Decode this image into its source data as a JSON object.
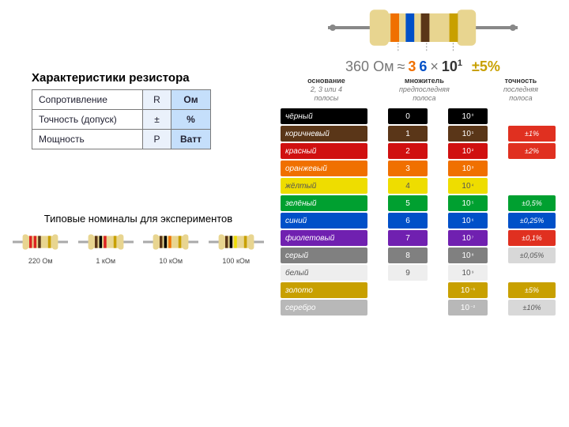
{
  "left": {
    "title": "Характеристики резистора",
    "rows": [
      {
        "label": "Сопротивление",
        "sym": "R",
        "unit": "Ом"
      },
      {
        "label": "Точность (допуск)",
        "sym": "±",
        "unit": "%"
      },
      {
        "label": "Мощность",
        "sym": "P",
        "unit": "Ватт"
      }
    ],
    "typicalTitle": "Типовые номиналы для экспериментов",
    "resistors": [
      {
        "label": "220 Ом",
        "bands": [
          "#d22",
          "#d22",
          "#5a3618",
          "#c8a000"
        ]
      },
      {
        "label": "1 кОм",
        "bands": [
          "#5a3618",
          "#000",
          "#d22",
          "#c8a000"
        ]
      },
      {
        "label": "10 кОм",
        "bands": [
          "#5a3618",
          "#000",
          "#f07000",
          "#c8a000"
        ]
      },
      {
        "label": "100 кОм",
        "bands": [
          "#5a3618",
          "#000",
          "#eedd00",
          "#c8a000"
        ]
      }
    ]
  },
  "right": {
    "resistorBands": [
      "#f07000",
      "#0050c8",
      "#5a3618",
      "#c8a000"
    ],
    "formula": {
      "value": "360 Ом",
      "approx": "≈",
      "d1": "3",
      "d2": "6",
      "mul": "×",
      "base": "10",
      "exp": "1",
      "tol": "±5%"
    },
    "legend": [
      {
        "t1": "основание",
        "t2": "2, 3 или 4\nполосы"
      },
      {
        "t1": "множитель",
        "t2": "предпоследняя\nполоса"
      },
      {
        "t1": "точность",
        "t2": "последняя\nполоса"
      }
    ],
    "colorRows": [
      {
        "name": "чёрный",
        "bg": "#000000",
        "fg": "#ffffff",
        "digit": "0",
        "mult": "10⁰"
      },
      {
        "name": "коричневый",
        "bg": "#5a3618",
        "fg": "#ffffff",
        "digit": "1",
        "mult": "10¹",
        "tol": "±1%",
        "tolbg": "#e03020",
        "tolfg": "#ffffff"
      },
      {
        "name": "красный",
        "bg": "#d01010",
        "fg": "#ffffff",
        "digit": "2",
        "mult": "10²",
        "tol": "±2%",
        "tolbg": "#e03020",
        "tolfg": "#ffffff"
      },
      {
        "name": "оранжевый",
        "bg": "#f07000",
        "fg": "#ffffff",
        "digit": "3",
        "mult": "10³"
      },
      {
        "name": "жёлтый",
        "bg": "#eedd00",
        "fg": "#555555",
        "digit": "4",
        "mult": "10⁴"
      },
      {
        "name": "зелёный",
        "bg": "#00a030",
        "fg": "#ffffff",
        "digit": "5",
        "mult": "10⁵",
        "tol": "±0,5%",
        "tolbg": "#00a030",
        "tolfg": "#ffffff"
      },
      {
        "name": "синий",
        "bg": "#0050c8",
        "fg": "#ffffff",
        "digit": "6",
        "mult": "10⁶",
        "tol": "±0,25%",
        "tolbg": "#0050c8",
        "tolfg": "#ffffff"
      },
      {
        "name": "фиолетовый",
        "bg": "#7020b0",
        "fg": "#ffffff",
        "digit": "7",
        "mult": "10⁷",
        "tol": "±0,1%",
        "tolbg": "#e03020",
        "tolfg": "#ffffff"
      },
      {
        "name": "серый",
        "bg": "#808080",
        "fg": "#ffffff",
        "digit": "8",
        "mult": "10⁸",
        "tol": "±0,05%",
        "tolbg": "#d8d8d8",
        "tolfg": "#555555"
      },
      {
        "name": "белый",
        "bg": "#eeeeee",
        "fg": "#555555",
        "digit": "9",
        "mult": "10⁹"
      },
      {
        "name": "золото",
        "bg": "#c8a000",
        "fg": "#ffffff",
        "mult": "10⁻¹",
        "tol": "±5%",
        "tolbg": "#c8a000",
        "tolfg": "#ffffff"
      },
      {
        "name": "серебро",
        "bg": "#b8b8b8",
        "fg": "#ffffff",
        "mult": "10⁻²",
        "tol": "±10%",
        "tolbg": "#d8d8d8",
        "tolfg": "#555555"
      }
    ]
  }
}
